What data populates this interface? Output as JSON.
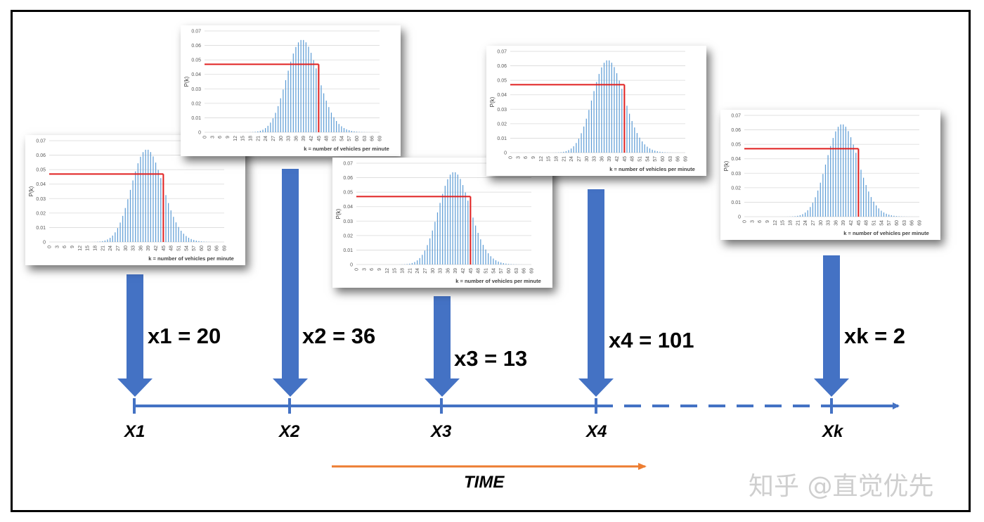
{
  "chart_data": {
    "type": "bar",
    "ylabel": "P(k)",
    "xlabel": "k = number of vehicles per minute",
    "ylim": [
      0,
      0.07
    ],
    "yticks": [
      "0.07",
      "0.06",
      "0.05",
      "0.04",
      "0.03",
      "0.02",
      "0.01",
      "0"
    ],
    "xticks": [
      "0",
      "3",
      "6",
      "9",
      "12",
      "15",
      "18",
      "21",
      "24",
      "27",
      "30",
      "33",
      "36",
      "39",
      "42",
      "45",
      "48",
      "51",
      "54",
      "57",
      "60",
      "63",
      "66",
      "69"
    ],
    "poisson_mean": 39,
    "x_range": [
      0,
      69
    ],
    "threshold_x": 45,
    "threshold_y": 0.047,
    "bar_color": "#5b9bd5",
    "threshold_color": "#e02020"
  },
  "observations": [
    {
      "node": "X1",
      "value_label": "x1 = 20"
    },
    {
      "node": "X2",
      "value_label": "x2 = 36"
    },
    {
      "node": "X3",
      "value_label": "x3 = 13"
    },
    {
      "node": "X4",
      "value_label": "x4 = 101"
    },
    {
      "node": "Xk",
      "value_label": "xk = 2"
    }
  ],
  "time_label": "TIME",
  "watermark": "知乎 @直觉优先",
  "colors": {
    "arrow": "#4472c4",
    "time_arrow": "#ed7d31",
    "axis": "#4472c4"
  }
}
